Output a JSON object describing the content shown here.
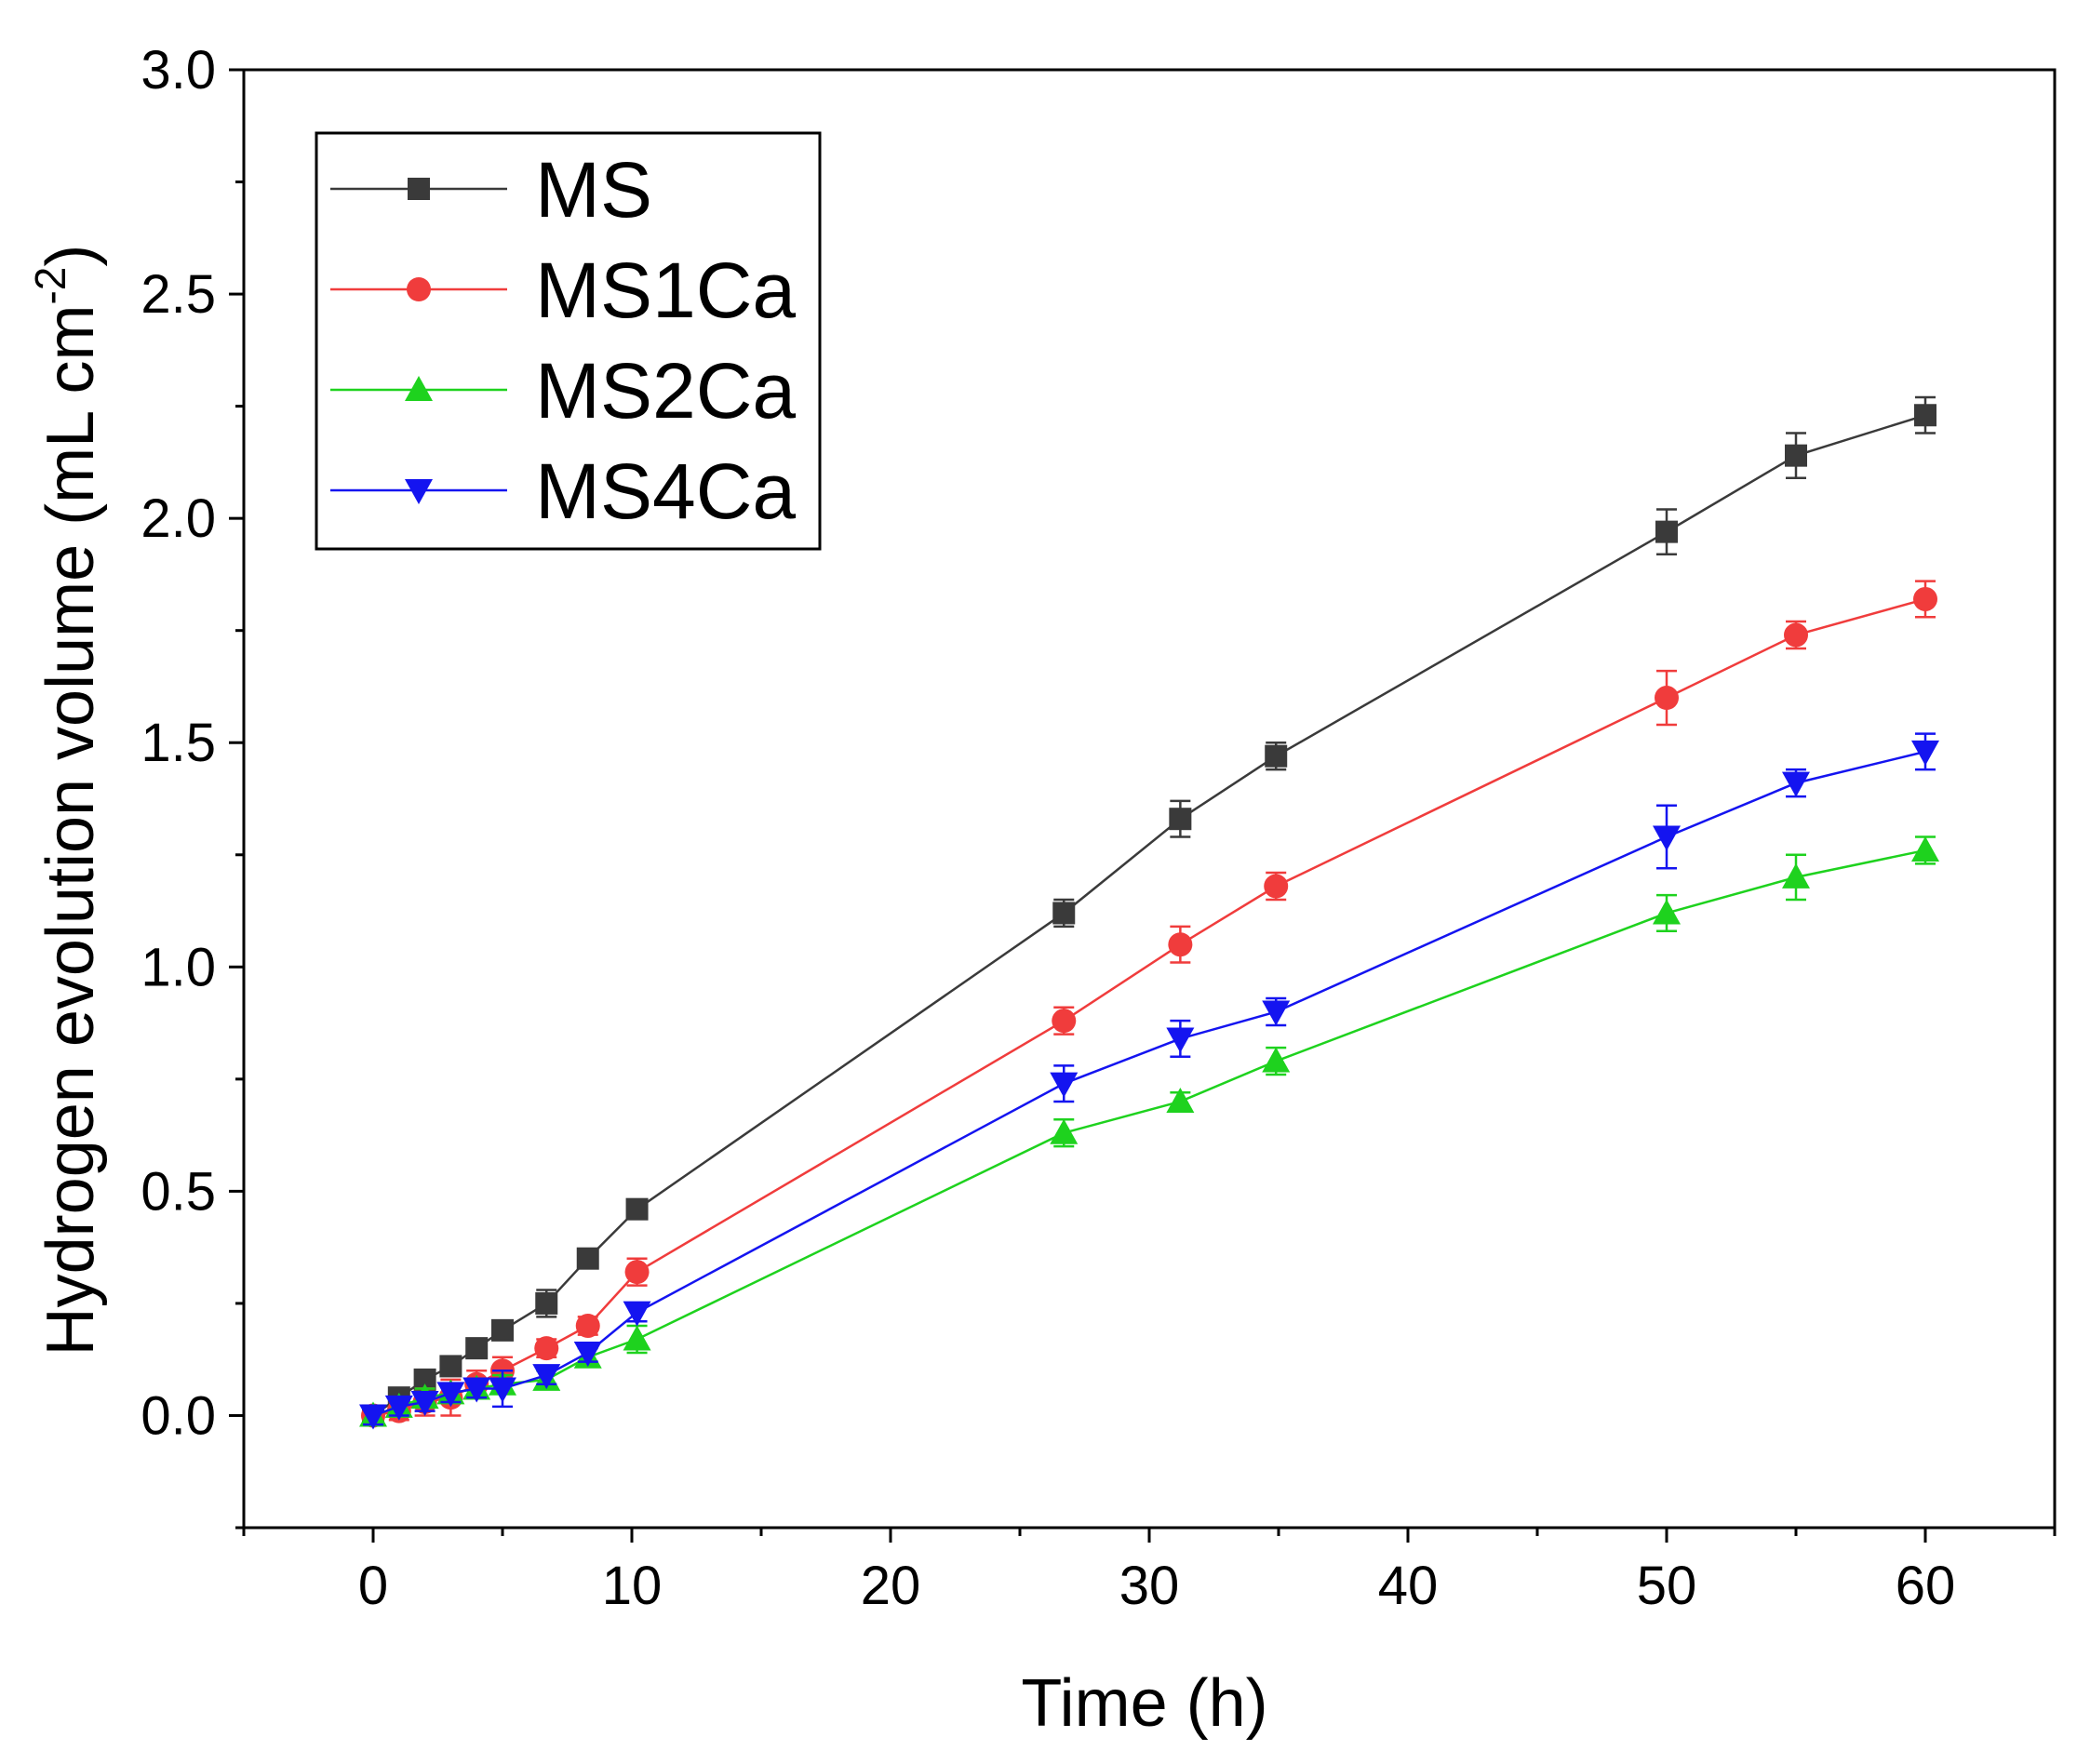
{
  "chart_data": {
    "type": "line",
    "xlabel": "Time (h)",
    "ylabel_main": "Hydrogen evolution volume (mL cm",
    "ylabel_sup": "-2",
    "ylabel_tail": ")",
    "xlim": [
      -5,
      65
    ],
    "ylim": [
      -0.25,
      3.0
    ],
    "xticks": [
      0,
      10,
      20,
      30,
      40,
      50,
      60
    ],
    "yticks": [
      0.0,
      0.5,
      1.0,
      1.5,
      2.0,
      2.5,
      3.0
    ],
    "ytick_labels": [
      "0.0",
      "0.5",
      "1.0",
      "1.5",
      "2.0",
      "2.5",
      "3.0"
    ],
    "legend_position": "top-left",
    "x": [
      0,
      1,
      2,
      3,
      4,
      5,
      6.7,
      8.3,
      10.2,
      26.7,
      31.2,
      34.9,
      50,
      55,
      60
    ],
    "series": [
      {
        "name": "MS",
        "color": "#3a3a3a",
        "marker": "square",
        "values": [
          0.0,
          0.04,
          0.08,
          0.11,
          0.15,
          0.19,
          0.25,
          0.35,
          0.46,
          1.12,
          1.33,
          1.47,
          1.97,
          2.14,
          2.23
        ],
        "errors": [
          0.02,
          0.02,
          0.02,
          0.02,
          0.02,
          0.02,
          0.03,
          0.02,
          0.02,
          0.03,
          0.04,
          0.03,
          0.05,
          0.05,
          0.04
        ]
      },
      {
        "name": "MS1Ca",
        "color": "#f03c3c",
        "marker": "circle",
        "values": [
          0.0,
          0.01,
          0.03,
          0.04,
          0.07,
          0.1,
          0.15,
          0.2,
          0.32,
          0.88,
          1.05,
          1.18,
          1.6,
          1.74,
          1.82
        ],
        "errors": [
          0.02,
          0.02,
          0.03,
          0.04,
          0.03,
          0.03,
          0.02,
          0.02,
          0.03,
          0.03,
          0.04,
          0.03,
          0.06,
          0.03,
          0.04
        ]
      },
      {
        "name": "MS2Ca",
        "color": "#1ed21e",
        "marker": "triangle-up",
        "values": [
          0.0,
          0.02,
          0.04,
          0.05,
          0.06,
          0.07,
          0.08,
          0.13,
          0.17,
          0.63,
          0.7,
          0.79,
          1.12,
          1.2,
          1.26
        ],
        "errors": [
          0.02,
          0.02,
          0.02,
          0.02,
          0.02,
          0.02,
          0.02,
          0.02,
          0.03,
          0.03,
          0.02,
          0.03,
          0.04,
          0.05,
          0.03
        ]
      },
      {
        "name": "MS4Ca",
        "color": "#1414f0",
        "marker": "triangle-down",
        "values": [
          0.0,
          0.02,
          0.03,
          0.05,
          0.06,
          0.06,
          0.09,
          0.14,
          0.23,
          0.74,
          0.84,
          0.9,
          1.29,
          1.41,
          1.48
        ],
        "errors": [
          0.02,
          0.02,
          0.02,
          0.02,
          0.02,
          0.04,
          0.02,
          0.02,
          0.02,
          0.04,
          0.04,
          0.03,
          0.07,
          0.03,
          0.04
        ]
      }
    ]
  }
}
